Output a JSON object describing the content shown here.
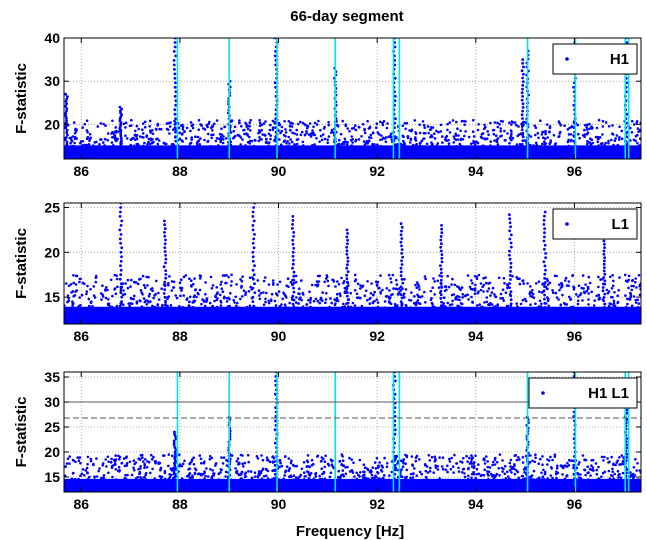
{
  "figure_title": "66-day segment",
  "xlabel": "Frequency [Hz]",
  "chart_data": [
    {
      "type": "scatter",
      "title": "66-day segment",
      "xlabel": "",
      "ylabel": "F-statistic",
      "xlim": [
        85.65,
        97.35
      ],
      "ylim": [
        12,
        40
      ],
      "xticks": [
        86,
        88,
        90,
        92,
        94,
        96
      ],
      "yticks": [
        20,
        30,
        40
      ],
      "grid": true,
      "legend": {
        "entries": [
          "H1"
        ],
        "placement": "top-right"
      },
      "series": [
        {
          "name": "H1",
          "color": "#0000ff",
          "marker": "dot",
          "baseline_range": [
            12,
            21
          ],
          "note_points": [
            {
              "x": 85.7,
              "y": 27
            },
            {
              "x": 86.8,
              "y": 24
            },
            {
              "x": 87.9,
              "y": 40
            },
            {
              "x": 89.0,
              "y": 30
            },
            {
              "x": 89.95,
              "y": 40
            },
            {
              "x": 91.15,
              "y": 33
            },
            {
              "x": 92.35,
              "y": 40
            },
            {
              "x": 94.95,
              "y": 35
            },
            {
              "x": 95.05,
              "y": 37
            },
            {
              "x": 96.0,
              "y": 40
            },
            {
              "x": 97.05,
              "y": 40
            }
          ]
        }
      ],
      "vlines": {
        "color": "#00e5e5",
        "x": [
          87.95,
          89.0,
          89.97,
          91.15,
          92.33,
          92.45,
          95.05,
          96.02,
          97.03,
          97.1
        ]
      }
    },
    {
      "type": "scatter",
      "title": "",
      "xlabel": "",
      "ylabel": "F-statistic",
      "xlim": [
        85.65,
        97.35
      ],
      "ylim": [
        12,
        25.5
      ],
      "xticks": [
        86,
        88,
        90,
        92,
        94,
        96
      ],
      "yticks": [
        15,
        20,
        25
      ],
      "grid": true,
      "legend": {
        "entries": [
          "L1"
        ],
        "placement": "top-right"
      },
      "series": [
        {
          "name": "L1",
          "color": "#0000ff",
          "marker": "dot",
          "baseline_range": [
            12,
            17.5
          ],
          "note_points": [
            {
              "x": 86.8,
              "y": 25.5
            },
            {
              "x": 87.7,
              "y": 23.5
            },
            {
              "x": 89.5,
              "y": 25.5
            },
            {
              "x": 90.3,
              "y": 24
            },
            {
              "x": 91.4,
              "y": 22.5
            },
            {
              "x": 92.5,
              "y": 23.2
            },
            {
              "x": 93.3,
              "y": 23
            },
            {
              "x": 94.7,
              "y": 24.2
            },
            {
              "x": 95.4,
              "y": 24.5
            },
            {
              "x": 96.6,
              "y": 22
            }
          ]
        }
      ]
    },
    {
      "type": "scatter",
      "title": "",
      "xlabel": "Frequency [Hz]",
      "ylabel": "F-statistic",
      "xlim": [
        85.65,
        97.35
      ],
      "ylim": [
        12,
        36
      ],
      "xticks": [
        86,
        88,
        90,
        92,
        94,
        96
      ],
      "yticks": [
        15,
        20,
        25,
        30,
        35
      ],
      "grid": true,
      "legend": {
        "entries": [
          "H1 L1"
        ],
        "placement": "top-right"
      },
      "series": [
        {
          "name": "H1 L1",
          "color": "#0000ff",
          "marker": "dot",
          "baseline_range": [
            12,
            19.5
          ],
          "note_points": [
            {
              "x": 87.9,
              "y": 24
            },
            {
              "x": 89.0,
              "y": 27
            },
            {
              "x": 89.95,
              "y": 36
            },
            {
              "x": 92.35,
              "y": 36
            },
            {
              "x": 95.05,
              "y": 27
            },
            {
              "x": 96.0,
              "y": 36
            },
            {
              "x": 97.05,
              "y": 29
            }
          ]
        }
      ],
      "vlines": {
        "color": "#00e5e5",
        "x": [
          87.95,
          89.0,
          89.97,
          91.15,
          92.33,
          92.45,
          95.05,
          96.02,
          97.03,
          97.1
        ]
      },
      "hlines": [
        {
          "y": 30,
          "style": "solid",
          "color": "#555555"
        },
        {
          "y": 26.8,
          "style": "dashed",
          "color": "#555555"
        }
      ]
    }
  ]
}
